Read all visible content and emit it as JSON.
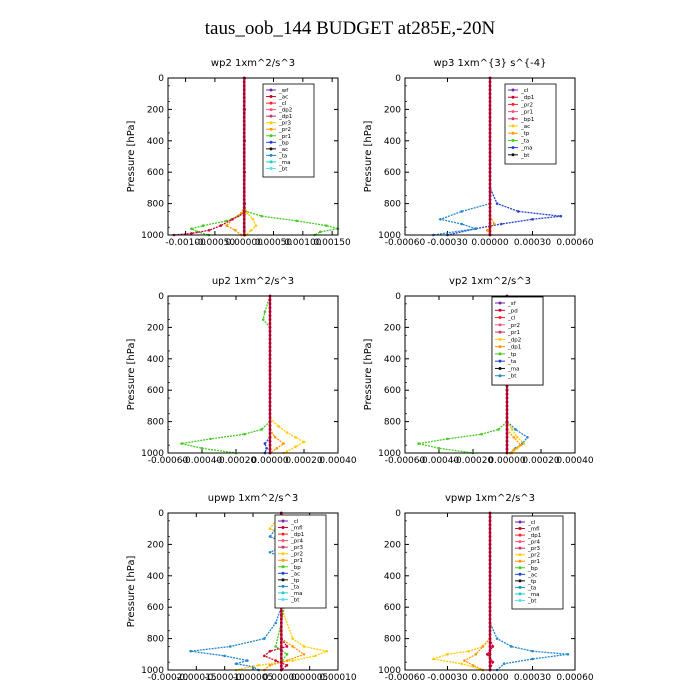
{
  "figure": {
    "title": "taus_oob_144  BUDGET at285E,-20N"
  },
  "chart_data": [
    {
      "type": "line",
      "title": "wp2   1xm^2/s^3",
      "ylabel": "Pressure  [hPa]",
      "xlim": [
        -0.0013,
        0.0016
      ],
      "ylim": [
        1000,
        0
      ],
      "xticks": [
        -0.001,
        -0.0005,
        0.0,
        0.0005,
        0.001,
        0.0015
      ],
      "xtick_labels": [
        "-0.00100",
        "-0.00050",
        "0.00000",
        "0.00050",
        "0.00100",
        "0.00150"
      ],
      "yticks": [
        0,
        200,
        400,
        600,
        800,
        1000
      ],
      "legend": [
        "_wf",
        "_ac",
        "_cl",
        "_dp2",
        "_dp1",
        "_pr3",
        "_pr2",
        "_pr1",
        "_bp",
        "_ac",
        "_ta",
        "_ma",
        "_bt"
      ],
      "series": [
        {
          "name": "_bp",
          "color": "#44cc22",
          "p": [
            0,
            300,
            600,
            800,
            850,
            880,
            910,
            940,
            960,
            980,
            1000
          ],
          "x": [
            0,
            0,
            0,
            0,
            3e-05,
            0.0003,
            0.0009,
            0.0014,
            0.0016,
            0.0013,
            0.0012
          ]
        },
        {
          "name": "_bp",
          "color": "#44cc22",
          "p": [
            850,
            880,
            910,
            940,
            960,
            980,
            1000
          ],
          "x": [
            0,
            -0.0001,
            -0.0003,
            -0.0007,
            -0.0009,
            -0.0008,
            -0.0006
          ]
        },
        {
          "name": "_pr1",
          "color": "#ff9900",
          "p": [
            820,
            860,
            900,
            940,
            970,
            1000
          ],
          "x": [
            0,
            -5e-05,
            -0.0002,
            -0.0003,
            -0.00015,
            -5e-05
          ]
        },
        {
          "name": "_pr2",
          "color": "#ffcc00",
          "p": [
            820,
            860,
            900,
            940,
            970,
            1000
          ],
          "x": [
            0,
            5e-05,
            0.00015,
            0.0002,
            0.00012,
            3e-05
          ]
        },
        {
          "name": "_dp1",
          "color": "#cc0033",
          "p": [
            860,
            900,
            940,
            970,
            990,
            1000
          ],
          "x": [
            0,
            -0.0002,
            -0.0004,
            -0.0006,
            -0.0009,
            -0.0012
          ]
        },
        {
          "name": "_cl",
          "color": "#ff2222",
          "p": [
            0,
            200,
            400,
            600,
            800,
            1000
          ],
          "x": [
            0,
            0,
            0,
            0,
            0,
            0
          ]
        },
        {
          "name": "_wf",
          "color": "#7722aa",
          "p": [
            0,
            200,
            400,
            600,
            800,
            1000
          ],
          "x": [
            1e-05,
            1e-05,
            1e-05,
            1e-05,
            1e-05,
            1e-05
          ]
        }
      ]
    },
    {
      "type": "line",
      "title": "wp3   1xm^{3} s^{-4}",
      "ylabel": "Pressure  [hPa]",
      "xlim": [
        -0.0006,
        0.0006
      ],
      "ylim": [
        1000,
        0
      ],
      "xticks": [
        -0.0006,
        -0.0003,
        0.0,
        0.0003,
        0.0006
      ],
      "xtick_labels": [
        "-0.00060",
        "-0.00030",
        "0.00000",
        "0.00030",
        "0.00060"
      ],
      "yticks": [
        0,
        200,
        400,
        600,
        800,
        1000
      ],
      "legend": [
        "_cl",
        "_dp1",
        "_pr2",
        "_pr1",
        "_bp1",
        "_ac",
        "_tp",
        "_ta",
        "_ma",
        "_bt"
      ],
      "series": [
        {
          "name": "_tp",
          "color": "#2244cc",
          "p": [
            0,
            700,
            800,
            850,
            880,
            900,
            930,
            960,
            1000
          ],
          "x": [
            0,
            0,
            5e-05,
            0.0002,
            0.0005,
            0.0003,
            8e-05,
            -0.0001,
            -0.0003
          ]
        },
        {
          "name": "_ta",
          "color": "#2288cc",
          "p": [
            800,
            850,
            900,
            930,
            960,
            1000
          ],
          "x": [
            0,
            -0.0002,
            -0.00035,
            -0.0002,
            -0.0001,
            -0.0004
          ]
        },
        {
          "name": "_pr1",
          "color": "#ff9900",
          "p": [
            880,
            930,
            970,
            1000
          ],
          "x": [
            0,
            3e-05,
            -2e-05,
            0
          ]
        },
        {
          "name": "_cl",
          "color": "#ff2222",
          "p": [
            0,
            200,
            400,
            600,
            800,
            1000
          ],
          "x": [
            0,
            0,
            0,
            0,
            0,
            0
          ]
        }
      ]
    },
    {
      "type": "line",
      "title": "up2   1xm^2/s^3",
      "ylabel": "Pressure  [hPa]",
      "xlim": [
        -0.0006,
        0.0004
      ],
      "ylim": [
        1000,
        0
      ],
      "xticks": [
        -0.0006,
        -0.0004,
        -0.0002,
        0.0,
        0.0002,
        0.0004
      ],
      "xtick_labels": [
        "-0.00060",
        "-0.00040",
        "-0.00020",
        "0.00000",
        "0.00020",
        "0.00040"
      ],
      "yticks": [
        0,
        200,
        400,
        600,
        800,
        1000
      ],
      "legend": [
        "_sf",
        "_pd",
        "_cl",
        "_pr2",
        "_pr1",
        "_dp2",
        "_dp1",
        "_tp",
        "_ta",
        "_ma",
        "_bt"
      ],
      "series": [
        {
          "name": "_dp2",
          "color": "#44cc22",
          "p": [
            0,
            100,
            150,
            200,
            600,
            800,
            850,
            880,
            910,
            940,
            970,
            1000
          ],
          "x": [
            0,
            -3e-05,
            -4e-05,
            0,
            0,
            0,
            -5e-05,
            -0.00015,
            -0.00035,
            -0.00052,
            -0.0004,
            -0.0002
          ]
        },
        {
          "name": "_pr2",
          "color": "#ffcc00",
          "p": [
            780,
            830,
            870,
            900,
            930,
            960,
            990,
            1000
          ],
          "x": [
            0,
            5e-05,
            0.0001,
            0.00015,
            0.0002,
            0.00015,
            0.0001,
            8e-05
          ]
        },
        {
          "name": "_pr1",
          "color": "#ff9900",
          "p": [
            850,
            900,
            940,
            970,
            1000
          ],
          "x": [
            0,
            3e-05,
            8e-05,
            4e-05,
            0
          ]
        },
        {
          "name": "_tp",
          "color": "#2244cc",
          "p": [
            900,
            940,
            970,
            1000
          ],
          "x": [
            0,
            -3e-05,
            -2e-05,
            -3e-05
          ]
        },
        {
          "name": "_cl",
          "color": "#ff2222",
          "p": [
            0,
            200,
            400,
            600,
            800,
            1000
          ],
          "x": [
            0,
            0,
            0,
            0,
            0,
            0
          ]
        }
      ]
    },
    {
      "type": "line",
      "title": "vp2   1xm^2/s^3",
      "ylabel": "Pressure  [hPa]",
      "xlim": [
        -0.0006,
        0.0004
      ],
      "ylim": [
        1000,
        0
      ],
      "xticks": [
        -0.0006,
        -0.0004,
        -0.0002,
        0.0,
        0.0002,
        0.0004
      ],
      "xtick_labels": [
        "-0.00060",
        "-0.00040",
        "-0.00020",
        "0.00000",
        "0.00020",
        "0.00040"
      ],
      "yticks": [
        0,
        200,
        400,
        600,
        800,
        1000
      ],
      "legend": [
        "_sf",
        "_pd",
        "_cl",
        "_pr2",
        "_pr1",
        "_dp2",
        "_dp1",
        "_tp",
        "_ta",
        "_ma",
        "_bt"
      ],
      "series": [
        {
          "name": "_dp2",
          "color": "#44cc22",
          "p": [
            0,
            600,
            800,
            850,
            880,
            910,
            940,
            970,
            1000
          ],
          "x": [
            0,
            0,
            0,
            -5e-05,
            -0.00015,
            -0.00035,
            -0.00052,
            -0.0004,
            -0.0002
          ]
        },
        {
          "name": "_tp",
          "color": "#2288cc",
          "p": [
            0,
            50,
            100,
            150,
            200,
            250,
            600,
            800,
            850,
            900,
            940,
            970,
            1000
          ],
          "x": [
            0,
            -2e-05,
            -4e-05,
            -2e-05,
            0,
            0,
            0,
            0,
            5e-05,
            0.00012,
            9e-05,
            5e-05,
            2e-05
          ]
        },
        {
          "name": "_pr2",
          "color": "#ffcc00",
          "p": [
            800,
            850,
            900,
            940,
            970,
            1000
          ],
          "x": [
            0,
            3e-05,
            6e-05,
            0.0001,
            6e-05,
            3e-05
          ]
        },
        {
          "name": "_pr1",
          "color": "#ff9900",
          "p": [
            850,
            900,
            950,
            980,
            1000
          ],
          "x": [
            0,
            4e-05,
            8e-05,
            4e-05,
            2e-05
          ]
        },
        {
          "name": "_cl",
          "color": "#ff2222",
          "p": [
            0,
            200,
            400,
            600,
            800,
            1000
          ],
          "x": [
            0,
            0,
            0,
            0,
            0,
            0
          ]
        }
      ]
    },
    {
      "type": "line",
      "title": "upwp   1xm^2/s^3",
      "ylabel": "Pressure  [hPa]",
      "xlim": [
        -0.0002,
        0.0001
      ],
      "ylim": [
        1000,
        0
      ],
      "xticks": [
        -0.0002,
        -0.00015,
        -0.0001,
        -5e-05,
        0.0,
        5e-05,
        0.0001
      ],
      "xtick_labels": [
        "-0.00020",
        "-0.00015",
        "-0.00010",
        "-0.00005",
        "0.00000",
        "0.00005",
        "0.00010"
      ],
      "yticks": [
        0,
        200,
        400,
        600,
        800,
        1000
      ],
      "legend": [
        "_cl",
        "_mfl",
        "_dp1",
        "_pr4",
        "_pr3",
        "_pr2",
        "_pr1",
        "_bp",
        "_ac",
        "_tp",
        "_ta",
        "_ma",
        "_bt"
      ],
      "series": [
        {
          "name": "_ac",
          "color": "#2288cc",
          "p": [
            0,
            80,
            100,
            150,
            200,
            250,
            300,
            350,
            400,
            500,
            600,
            700,
            800,
            850,
            880,
            910,
            940,
            960,
            980,
            1000
          ],
          "x": [
            0,
            1e-05,
            -1e-05,
            -2e-05,
            1e-05,
            -2e-05,
            1e-05,
            -1e-05,
            0,
            0,
            0,
            -1e-05,
            -3e-05,
            -9e-05,
            -0.00016,
            -0.0001,
            -6e-05,
            -8e-05,
            -5e-05,
            -4e-05
          ]
        },
        {
          "name": "_pr3",
          "color": "#ffcc00",
          "p": [
            0,
            100,
            150,
            200,
            300,
            400,
            600,
            800,
            850,
            880,
            910,
            940,
            970,
            1000
          ],
          "x": [
            0,
            -2e-05,
            1e-05,
            -1e-05,
            0,
            1e-05,
            0,
            2e-05,
            4e-05,
            8e-05,
            6e-05,
            2e-05,
            -4e-05,
            -8e-05
          ]
        },
        {
          "name": "_pr2",
          "color": "#ff9900",
          "p": [
            800,
            850,
            900,
            940,
            970,
            1000
          ],
          "x": [
            0,
            2e-05,
            4e-05,
            1e-05,
            -2e-05,
            -3e-05
          ]
        },
        {
          "name": "_bp",
          "color": "#44cc22",
          "p": [
            0,
            150,
            300,
            500,
            700,
            850,
            900,
            950,
            1000
          ],
          "x": [
            0,
            -1e-05,
            0,
            1e-05,
            0,
            -1e-05,
            1e-05,
            0,
            0
          ]
        },
        {
          "name": "_cl",
          "color": "#cc0033",
          "p": [
            0,
            200,
            400,
            600,
            800,
            850,
            880,
            910,
            940,
            970,
            1000
          ],
          "x": [
            0,
            0,
            0,
            0,
            0,
            1e-05,
            -2e-05,
            -3e-05,
            -1e-05,
            1e-05,
            0
          ]
        }
      ]
    },
    {
      "type": "line",
      "title": "vpwp   1xm^2/s^3",
      "ylabel": "",
      "xlim": [
        -0.0006,
        0.0006
      ],
      "ylim": [
        1000,
        0
      ],
      "xticks": [
        -0.0006,
        -0.0003,
        0.0,
        0.0003,
        0.0006
      ],
      "xtick_labels": [
        "-0.00060",
        "-0.00030",
        "0.00000",
        "0.00030",
        "0.00060"
      ],
      "yticks": [
        0,
        200,
        400,
        600,
        800,
        1000
      ],
      "legend": [
        "_cl",
        "_mfl",
        "_dp1",
        "_pr4",
        "_pr3",
        "_pr2",
        "_pr1",
        "_bp",
        "_ac",
        "_tp",
        "_ta",
        "_ma",
        "_bt"
      ],
      "series": [
        {
          "name": "_ac",
          "color": "#2288cc",
          "p": [
            0,
            700,
            800,
            850,
            880,
            900,
            930,
            960,
            1000
          ],
          "x": [
            0,
            0,
            5e-05,
            0.00015,
            0.0003,
            0.00055,
            0.0003,
            0.0001,
            5e-05
          ]
        },
        {
          "name": "_pr3",
          "color": "#ffcc00",
          "p": [
            800,
            850,
            880,
            900,
            930,
            960,
            1000
          ],
          "x": [
            0,
            -5e-05,
            -0.00015,
            -0.0003,
            -0.0004,
            -0.0002,
            -5e-05
          ]
        },
        {
          "name": "_pr2",
          "color": "#ff9900",
          "p": [
            800,
            850,
            900,
            940,
            970,
            1000
          ],
          "x": [
            0,
            -5e-05,
            -0.0001,
            -0.00018,
            -0.00012,
            -5e-05
          ]
        },
        {
          "name": "_cl",
          "color": "#cc0033",
          "p": [
            0,
            200,
            400,
            600,
            800,
            850,
            900,
            950,
            1000
          ],
          "x": [
            0,
            0,
            0,
            0,
            0,
            2e-05,
            -2e-05,
            2e-05,
            0
          ]
        }
      ]
    }
  ]
}
